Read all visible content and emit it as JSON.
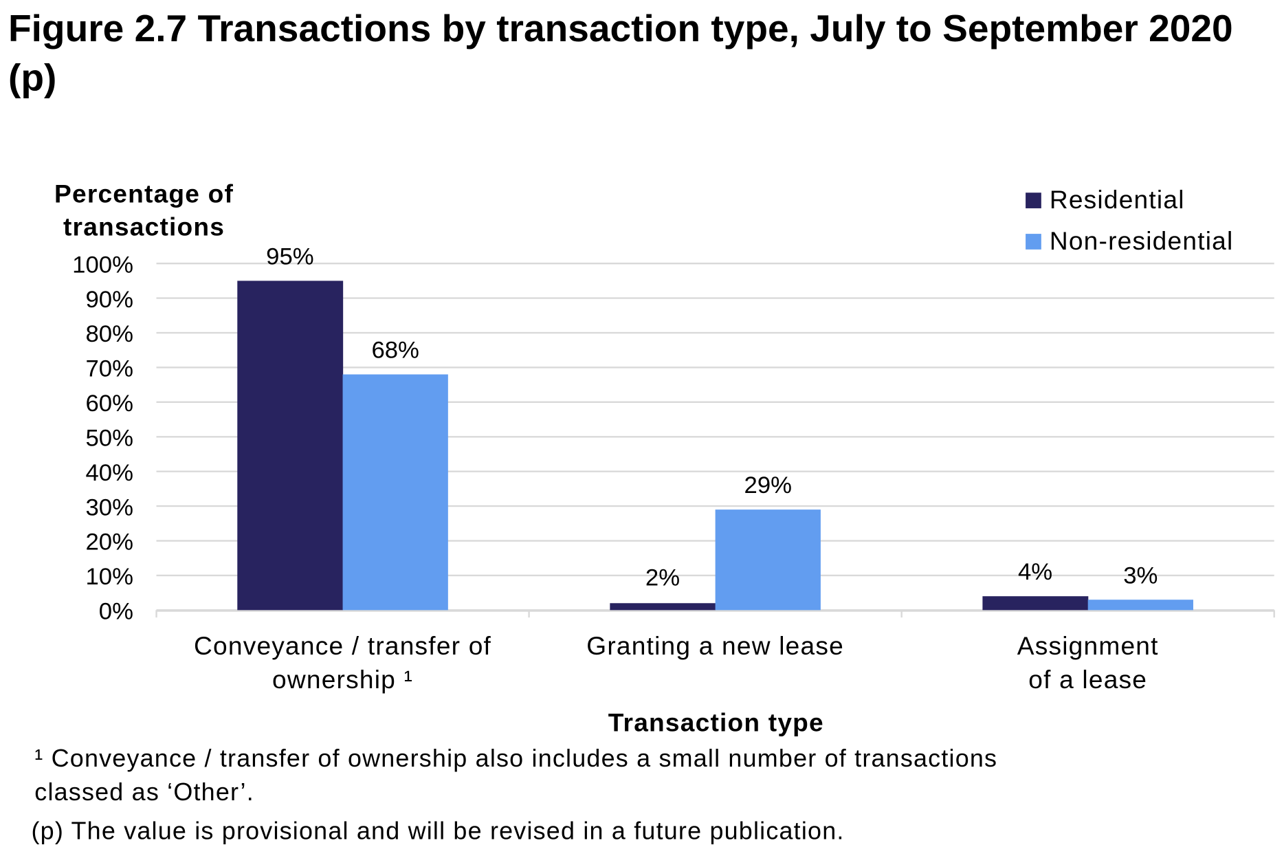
{
  "chart_data": {
    "type": "bar",
    "title": "Figure 2.7  Transactions by transaction type, July to September 2020 (p)",
    "ylabel": "Percentage of transactions",
    "xlabel": "Transaction type",
    "categories": [
      "Conveyance / transfer of ownership ¹",
      "Granting a new lease",
      "Assignment of a lease"
    ],
    "category_lines": [
      [
        "Conveyance / transfer of",
        "ownership ¹"
      ],
      [
        "Granting a new lease"
      ],
      [
        "Assignment",
        "of a lease"
      ]
    ],
    "series": [
      {
        "name": "Residential",
        "values": [
          95,
          2,
          4
        ],
        "labels": [
          "95%",
          "2%",
          "4%"
        ],
        "color": "#28235f"
      },
      {
        "name": "Non-residential",
        "values": [
          68,
          29,
          3
        ],
        "labels": [
          "68%",
          "29%",
          "3%"
        ],
        "color": "#629df0"
      }
    ],
    "ylim": [
      0,
      100
    ],
    "yticks": [
      "0%",
      "10%",
      "20%",
      "30%",
      "40%",
      "50%",
      "60%",
      "70%",
      "80%",
      "90%",
      "100%"
    ],
    "grid": true,
    "legend": "top-right"
  },
  "notes": {
    "footnote_line1": "¹ Conveyance  / transfer  of ownership  also includes a small number of transactions",
    "footnote_line2": "classed as ‘Other’.",
    "provisional": "(p) The  value  is provisional  and will be  revised  in a  future  publication."
  }
}
